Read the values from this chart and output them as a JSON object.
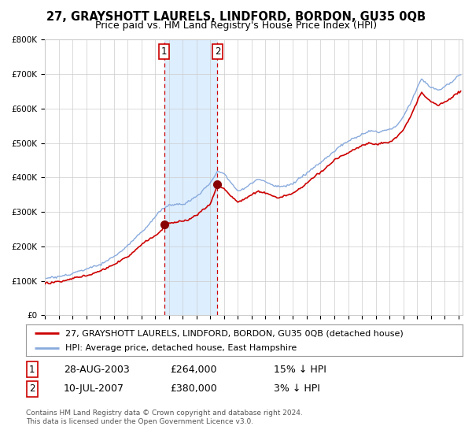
{
  "title": "27, GRAYSHOTT LAURELS, LINDFORD, BORDON, GU35 0QB",
  "subtitle": "Price paid vs. HM Land Registry's House Price Index (HPI)",
  "ylim": [
    0,
    800000
  ],
  "yticks": [
    0,
    100000,
    200000,
    300000,
    400000,
    500000,
    600000,
    700000,
    800000
  ],
  "ytick_labels": [
    "£0",
    "£100K",
    "£200K",
    "£300K",
    "£400K",
    "£500K",
    "£600K",
    "£700K",
    "£800K"
  ],
  "xlim_start": 1995.0,
  "xlim_end": 2025.3,
  "purchase1_x": 2003.656,
  "purchase1_y": 264000,
  "purchase2_x": 2007.524,
  "purchase2_y": 380000,
  "shade_x1": 2003.656,
  "shade_x2": 2007.524,
  "hpi_color": "#88aadd",
  "price_color": "#cc0000",
  "marker_color": "#880000",
  "shade_color": "#ddeeff",
  "grid_color": "#cccccc",
  "bg_color": "#ffffff",
  "legend_label1": "27, GRAYSHOTT LAURELS, LINDFORD, BORDON, GU35 0QB (detached house)",
  "legend_label2": "HPI: Average price, detached house, East Hampshire",
  "annotation1_date": "28-AUG-2003",
  "annotation1_price": "£264,000",
  "annotation1_pct": "15% ↓ HPI",
  "annotation2_date": "10-JUL-2007",
  "annotation2_price": "£380,000",
  "annotation2_pct": "3% ↓ HPI",
  "footnote": "Contains HM Land Registry data © Crown copyright and database right 2024.\nThis data is licensed under the Open Government Licence v3.0.",
  "title_fontsize": 10.5,
  "subtitle_fontsize": 9,
  "tick_fontsize": 7.5,
  "legend_fontsize": 8,
  "annot_fontsize": 9,
  "footnote_fontsize": 6.5
}
